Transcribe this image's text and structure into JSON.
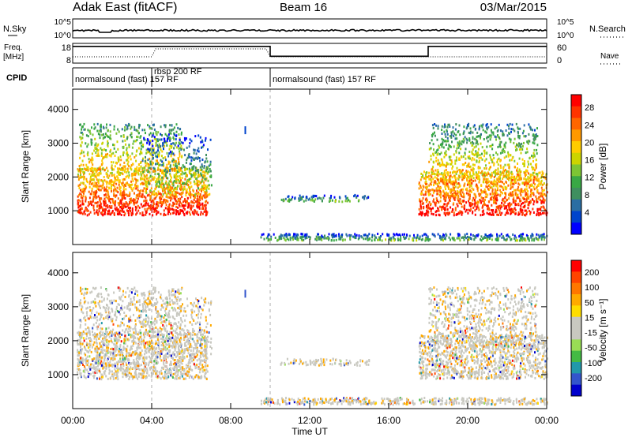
{
  "header": {
    "station": "Adak East (fitACF)",
    "beam": "Beam 16",
    "date": "03/Mar/2015"
  },
  "chart_data": [
    {
      "type": "line",
      "name": "noise-panel",
      "left_label": "N.Sky",
      "right_label": "N.Search",
      "left_ticks": [
        "10^5",
        "10^0"
      ],
      "right_ticks": [
        "10^5",
        "10^0"
      ],
      "scale": "log"
    },
    {
      "type": "line",
      "name": "frequency-panel",
      "left_label_1": "Freq.",
      "left_label_2": "[MHz]",
      "right_label": "Nave",
      "left_ticks": [
        "18",
        "8"
      ],
      "right_ticks": [
        "60",
        "0"
      ],
      "freq_mhz": {
        "x_hours": [
          0,
          10,
          10,
          18,
          18,
          24
        ],
        "values": [
          16.5,
          16.5,
          11.5,
          11.5,
          16.5,
          16.5
        ]
      }
    },
    {
      "type": "table",
      "name": "cpid-strip",
      "label": "CPID",
      "segments": [
        {
          "start_hour": 0.0,
          "end_hour": 4.0,
          "text": "normalsound (fast) 157 RF"
        },
        {
          "start_hour": 4.0,
          "end_hour": 10.0,
          "text": "rbsp 200 RF"
        },
        {
          "start_hour": 10.0,
          "end_hour": 24.0,
          "text": "normalsound (fast) 157 RF"
        }
      ]
    },
    {
      "type": "heatmap",
      "name": "power-panel",
      "ylabel": "Slant Range [km]",
      "yticks": [
        1000,
        2000,
        3000,
        4000
      ],
      "ylim": [
        0,
        4600
      ],
      "colorbar_label": "Power [dB]",
      "colorbar_ticks": [
        "4",
        "8",
        "12",
        "16",
        "20",
        "24",
        "28"
      ],
      "colors": [
        "#0000ff",
        "#0044cc",
        "#2b6ea3",
        "#3f8f5f",
        "#39a845",
        "#7cc534",
        "#ccd400",
        "#ffcc00",
        "#ff9900",
        "#ff6600",
        "#ff3300",
        "#ff0000"
      ]
    },
    {
      "type": "heatmap",
      "name": "velocity-panel",
      "ylabel": "Slant Range [km]",
      "yticks": [
        1000,
        2000,
        3000,
        4000
      ],
      "ylim": [
        0,
        4600
      ],
      "colorbar_label": "Velocity [m s⁻¹]",
      "colorbar_ticks": [
        "200",
        "100",
        "50",
        "15",
        "-15",
        "-50",
        "-100",
        "-200"
      ],
      "colors": [
        "#0000cc",
        "#3355cc",
        "#2299aa",
        "#44bb44",
        "#99dd55",
        "#c8c8c0",
        "#c8c8c0",
        "#ffdd00",
        "#ffaa00",
        "#ff7700",
        "#ff4400",
        "#ff0000"
      ]
    }
  ],
  "xaxis": {
    "label": "Time UT",
    "ticks": [
      "00:00",
      "04:00",
      "08:00",
      "12:00",
      "16:00",
      "20:00",
      "00:00"
    ],
    "xlim_hours": [
      0,
      24
    ]
  }
}
